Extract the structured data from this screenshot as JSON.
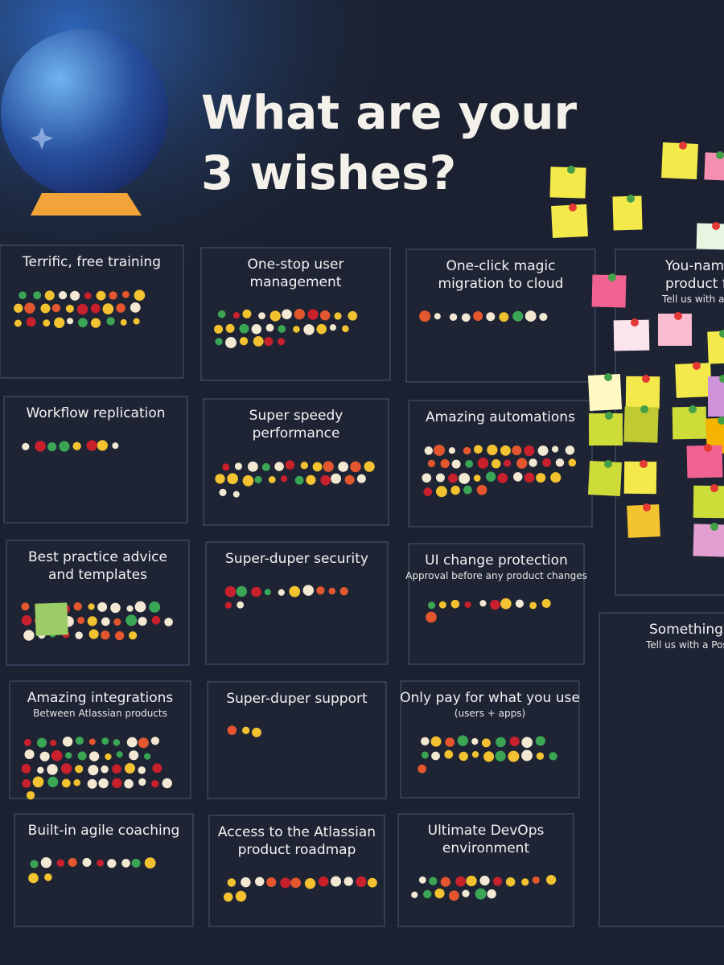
{
  "header": {
    "title_lines": [
      "What are your",
      "3 wishes?"
    ]
  },
  "cards": [
    {
      "title_lines": [
        "Terrific, free training"
      ]
    },
    {
      "title_lines": [
        "One-stop user",
        "management"
      ]
    },
    {
      "title_lines": [
        "One-click magic",
        "migration to cloud"
      ]
    },
    {
      "title_lines": [
        "Workflow replication"
      ]
    },
    {
      "title_lines": [
        "Super speedy",
        "performance"
      ]
    },
    {
      "title_lines": [
        "Amazing automations"
      ]
    },
    {
      "title_lines": [
        "Best practice advice",
        "and templates"
      ]
    },
    {
      "title_lines": [
        "Super-duper security"
      ]
    },
    {
      "title_lines": [
        "UI change protection"
      ],
      "subtitle": "Approval before any product changes"
    },
    {
      "title_lines": [
        "Amazing integrations"
      ],
      "subtitle": "Between Atlassian products"
    },
    {
      "title_lines": [
        "Super-duper support"
      ]
    },
    {
      "title_lines": [
        "Only pay for what you use"
      ],
      "subtitle": "(users + apps)"
    },
    {
      "title_lines": [
        "Built-in agile coaching"
      ]
    },
    {
      "title_lines": [
        "Access to the Atlassian",
        "product roadmap"
      ]
    },
    {
      "title_lines": [
        "Ultimate DevOps",
        "environment"
      ]
    },
    {
      "title_lines": [
        "You-nam",
        "product fe"
      ],
      "subtitle": "Tell us with a P"
    },
    {
      "title_lines": [
        "Something els"
      ],
      "subtitle": "Tell us with a Post-"
    }
  ]
}
